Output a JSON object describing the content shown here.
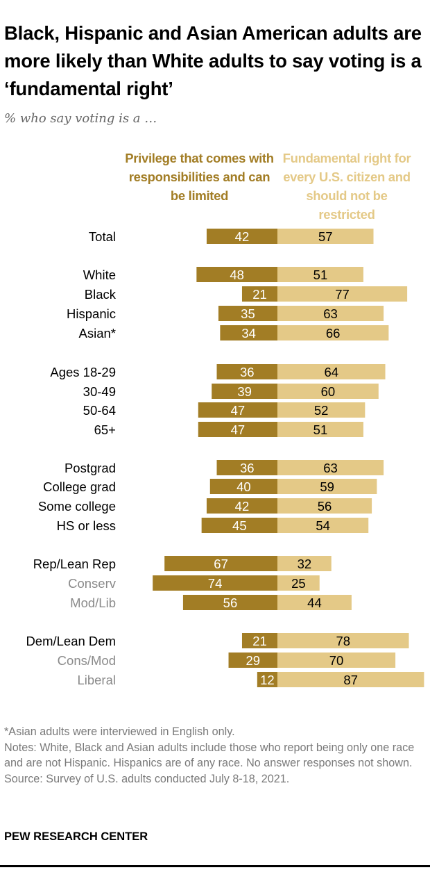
{
  "title": "Black, Hispanic and Asian American adults are more likely than White adults to say voting is a ‘fundamental right’",
  "subtitle": "% who say voting is a …",
  "colors": {
    "privilege": "#a27d25",
    "right": "#e4c987",
    "label_main": "#000000",
    "label_sub": "#8a8a8a"
  },
  "chart_data": {
    "type": "bar",
    "orientation": "horizontal-diverging",
    "series": [
      {
        "name": "Privilege that comes with responsibilities and can be limited",
        "values": [
          42,
          48,
          21,
          35,
          34,
          36,
          39,
          47,
          47,
          36,
          40,
          42,
          45,
          67,
          74,
          56,
          21,
          29,
          12
        ]
      },
      {
        "name": "Fundamental right for every U.S. citizen and should not be restricted",
        "values": [
          57,
          51,
          77,
          63,
          66,
          64,
          60,
          52,
          51,
          63,
          59,
          56,
          54,
          32,
          25,
          44,
          78,
          70,
          87
        ]
      }
    ],
    "categories": [
      "Total",
      "White",
      "Black",
      "Hispanic",
      "Asian*",
      "Ages 18-29",
      "30-49",
      "50-64",
      "65+",
      "Postgrad",
      "College grad",
      "Some college",
      "HS or less",
      "Rep/Lean Rep",
      "Conserv",
      "Mod/Lib",
      "Dem/Lean Dem",
      "Cons/Mod",
      "Liberal"
    ],
    "subgroup": [
      false,
      false,
      false,
      false,
      false,
      false,
      false,
      false,
      false,
      false,
      false,
      false,
      false,
      false,
      true,
      true,
      false,
      true,
      true
    ]
  },
  "notes": {
    "footnote": "*Asian adults were interviewed in English only.",
    "notes": "Notes: White, Black and Asian adults include those who report being only one race and are not Hispanic. Hispanics are of any race. No answer responses not shown.",
    "source": "Source: Survey of U.S. adults conducted July 8-18, 2021."
  },
  "brand": "PEW RESEARCH CENTER"
}
